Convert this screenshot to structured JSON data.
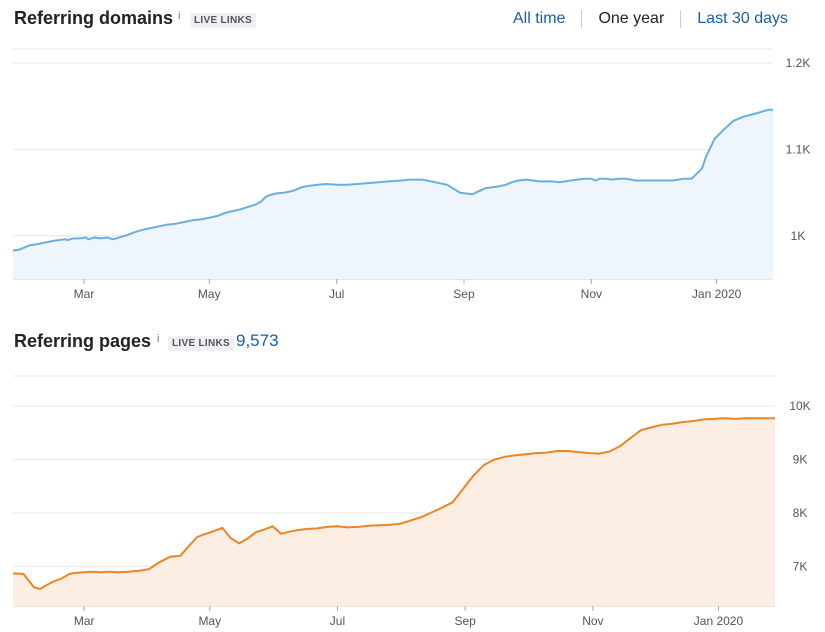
{
  "domains_section": {
    "title": "Referring domains",
    "info_icon": "i",
    "badge": "LIVE LINKS",
    "range_tabs": [
      "All time",
      "One year",
      "Last 30 days"
    ],
    "active_tab": "One year"
  },
  "pages_section": {
    "title": "Referring pages",
    "info_icon": "i",
    "badge": "LIVE LINKS",
    "count": "9,573"
  },
  "colors": {
    "domains_line": "#6aaee0",
    "domains_fill": "#eef5fd",
    "pages_line": "#ed8524",
    "pages_fill": "#fdeee3",
    "grid": "#e6e6e6",
    "link": "#1a5ea8"
  },
  "chart_data": [
    {
      "type": "area",
      "x_tick_labels": [
        "Mar",
        "May",
        "Jul",
        "Sep",
        "Nov",
        "Jan 2020"
      ],
      "y_tick_labels": [
        "1K",
        "1.1K",
        "1.2K"
      ],
      "ylim": [
        950,
        1200
      ],
      "y_ticks": [
        1000,
        1100,
        1200
      ],
      "grid": true,
      "series": [
        {
          "x": [
            0,
            3,
            5,
            8,
            11,
            15,
            19,
            22,
            25,
            26,
            29,
            32,
            35,
            36,
            39,
            42,
            45,
            48,
            52,
            55,
            58,
            62,
            66,
            70,
            74,
            78,
            82,
            86,
            90,
            94,
            98,
            101,
            104,
            108,
            112,
            116,
            119,
            121,
            123,
            126,
            130,
            134,
            138,
            142,
            146,
            150,
            155,
            160,
            165,
            170,
            175,
            180,
            186,
            190,
            196,
            202,
            208,
            214,
            220,
            226,
            232,
            236,
            239,
            242,
            246,
            252,
            258,
            262,
            267,
            270,
            274,
            277,
            279,
            281,
            284,
            287,
            290,
            294,
            298,
            302,
            306,
            309,
            312,
            316,
            321,
            325,
            328,
            330,
            332,
            336,
            340,
            345,
            350,
            355,
            359,
            362,
            364
          ],
          "y": [
            983,
            984,
            986,
            989,
            990,
            992,
            994,
            995,
            996,
            995,
            997,
            997,
            998,
            996,
            998,
            997,
            998,
            996,
            999,
            1001,
            1004,
            1007,
            1009,
            1011,
            1013,
            1014,
            1016,
            1018,
            1019,
            1021,
            1023,
            1026,
            1028,
            1030,
            1033,
            1036,
            1040,
            1045,
            1047,
            1049,
            1050,
            1052,
            1056,
            1058,
            1059,
            1060,
            1059,
            1059,
            1060,
            1061,
            1062,
            1063,
            1064,
            1065,
            1065,
            1062,
            1059,
            1050,
            1048,
            1055,
            1057,
            1059,
            1062,
            1064,
            1065,
            1063,
            1063,
            1062,
            1064,
            1065,
            1066,
            1066,
            1064,
            1066,
            1066,
            1065,
            1066,
            1066,
            1064,
            1064,
            1064,
            1064,
            1064,
            1064,
            1066,
            1066,
            1073,
            1078,
            1092,
            1112,
            1122,
            1133,
            1138,
            1141,
            1144,
            1146,
            1146
          ],
          "comment": "x = days from start of one-year window"
        }
      ]
    },
    {
      "type": "area",
      "x_tick_labels": [
        "Mar",
        "May",
        "Jul",
        "Sep",
        "Nov",
        "Jan 2020"
      ],
      "y_tick_labels": [
        "7K",
        "8K",
        "9K",
        "10K"
      ],
      "ylim": [
        6260,
        10300
      ],
      "y_ticks": [
        7000,
        8000,
        9000,
        10000
      ],
      "grid": true,
      "series": [
        {
          "x": [
            0,
            5,
            10,
            13,
            16,
            20,
            23,
            27,
            30,
            34,
            38,
            42,
            46,
            50,
            55,
            60,
            65,
            70,
            75,
            80,
            84,
            88,
            92,
            96,
            100,
            104,
            108,
            112,
            116,
            120,
            124,
            128,
            132,
            136,
            140,
            145,
            150,
            155,
            160,
            165,
            170,
            175,
            180,
            185,
            190,
            195,
            200,
            205,
            210,
            215,
            220,
            225,
            230,
            235,
            240,
            245,
            250,
            255,
            260,
            265,
            270,
            275,
            280,
            285,
            290,
            295,
            300,
            305,
            310,
            315,
            320,
            325,
            330,
            335,
            340,
            345,
            350,
            355,
            360,
            364
          ],
          "y": [
            6870,
            6860,
            6610,
            6580,
            6650,
            6730,
            6770,
            6860,
            6880,
            6890,
            6900,
            6890,
            6900,
            6890,
            6900,
            6920,
            6950,
            7080,
            7180,
            7200,
            7380,
            7550,
            7610,
            7660,
            7720,
            7530,
            7430,
            7520,
            7640,
            7690,
            7750,
            7610,
            7650,
            7680,
            7700,
            7710,
            7740,
            7750,
            7730,
            7740,
            7760,
            7770,
            7780,
            7800,
            7860,
            7920,
            8010,
            8100,
            8200,
            8450,
            8700,
            8900,
            9000,
            9050,
            9080,
            9100,
            9120,
            9130,
            9160,
            9160,
            9140,
            9120,
            9110,
            9150,
            9250,
            9400,
            9550,
            9600,
            9650,
            9670,
            9700,
            9720,
            9750,
            9760,
            9770,
            9760,
            9770,
            9770,
            9770,
            9770
          ],
          "comment": "x = days from start of one-year window"
        }
      ]
    }
  ]
}
